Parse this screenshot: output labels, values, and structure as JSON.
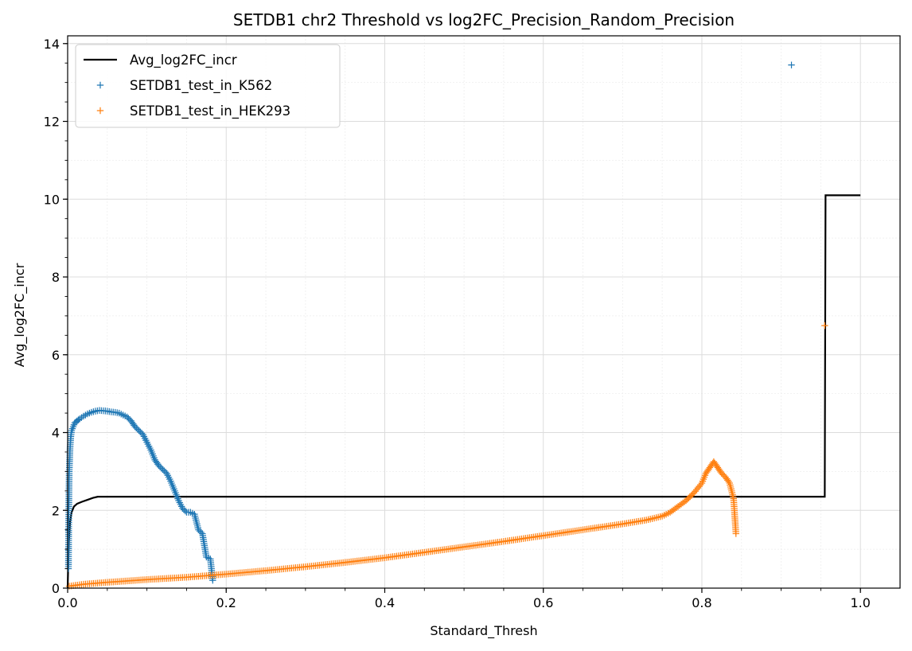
{
  "chart_data": {
    "type": "scatter",
    "title": "SETDB1 chr2 Threshold vs log2FC_Precision_Random_Precision",
    "xlabel": "Standard_Thresh",
    "ylabel": "Avg_log2FC_incr",
    "xlim": [
      0,
      1.05
    ],
    "ylim": [
      0,
      14.2
    ],
    "xticks": [
      "0.0",
      "0.2",
      "0.4",
      "0.6",
      "0.8",
      "1.0"
    ],
    "yticks": [
      "0",
      "2",
      "4",
      "6",
      "8",
      "10",
      "12",
      "14"
    ],
    "grid": true,
    "minor_grid": true,
    "legend_position": "upper-left",
    "series": [
      {
        "name": "Avg_log2FC_incr",
        "kind": "line",
        "color": "#000000",
        "x": [
          0.0,
          0.0015,
          0.003,
          0.005,
          0.008,
          0.012,
          0.018,
          0.025,
          0.032,
          0.038,
          0.1,
          0.3,
          0.5,
          0.7,
          0.9,
          0.955,
          0.956,
          1.0
        ],
        "y": [
          0.0,
          1.2,
          1.7,
          1.95,
          2.1,
          2.17,
          2.22,
          2.27,
          2.32,
          2.35,
          2.35,
          2.35,
          2.35,
          2.35,
          2.35,
          2.35,
          10.1,
          10.1
        ]
      },
      {
        "name": "SETDB1_test_in_K562",
        "kind": "scatter",
        "marker": "+",
        "color": "#1f77b4",
        "x": [
          0.001,
          0.0015,
          0.002,
          0.003,
          0.004,
          0.005,
          0.007,
          0.009,
          0.012,
          0.015,
          0.02,
          0.025,
          0.03,
          0.035,
          0.04,
          0.045,
          0.05,
          0.055,
          0.06,
          0.065,
          0.07,
          0.075,
          0.08,
          0.085,
          0.09,
          0.095,
          0.1,
          0.105,
          0.11,
          0.115,
          0.12,
          0.125,
          0.13,
          0.135,
          0.14,
          0.145,
          0.15,
          0.155,
          0.16,
          0.165,
          0.17,
          0.175,
          0.18,
          0.183,
          0.913
        ],
        "y": [
          0.5,
          2.2,
          3.0,
          3.6,
          3.9,
          4.05,
          4.15,
          4.25,
          4.3,
          4.35,
          4.42,
          4.48,
          4.52,
          4.55,
          4.57,
          4.56,
          4.55,
          4.53,
          4.52,
          4.5,
          4.45,
          4.4,
          4.3,
          4.15,
          4.05,
          3.95,
          3.75,
          3.55,
          3.3,
          3.15,
          3.05,
          2.95,
          2.75,
          2.5,
          2.25,
          2.05,
          1.95,
          1.95,
          1.9,
          1.5,
          1.4,
          0.8,
          0.75,
          0.2,
          13.45
        ]
      },
      {
        "name": "SETDB1_test_in_HEK293",
        "kind": "scatter",
        "marker": "+",
        "color": "#ff7f0e",
        "x": [
          0.002,
          0.02,
          0.05,
          0.1,
          0.15,
          0.2,
          0.25,
          0.3,
          0.35,
          0.4,
          0.45,
          0.5,
          0.55,
          0.6,
          0.65,
          0.7,
          0.73,
          0.75,
          0.76,
          0.77,
          0.78,
          0.79,
          0.8,
          0.805,
          0.81,
          0.815,
          0.82,
          0.825,
          0.83,
          0.835,
          0.84,
          0.843,
          0.955
        ],
        "y": [
          0.05,
          0.1,
          0.15,
          0.22,
          0.28,
          0.36,
          0.45,
          0.55,
          0.66,
          0.78,
          0.92,
          1.06,
          1.2,
          1.35,
          1.5,
          1.65,
          1.75,
          1.85,
          1.95,
          2.1,
          2.25,
          2.45,
          2.7,
          2.95,
          3.1,
          3.25,
          3.1,
          2.95,
          2.85,
          2.7,
          2.3,
          1.4,
          6.75
        ]
      }
    ]
  }
}
